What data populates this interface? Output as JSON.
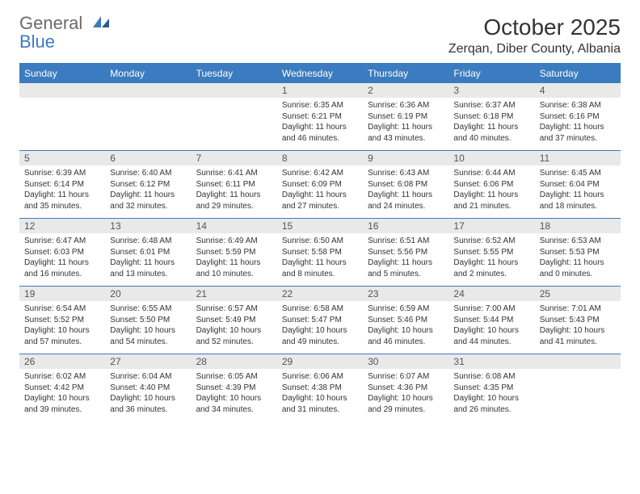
{
  "logo": {
    "text1": "General",
    "text2": "Blue"
  },
  "title": "October 2025",
  "location": "Zerqan, Diber County, Albania",
  "colors": {
    "accent": "#3b7bbf",
    "header_bg": "#3b7bbf",
    "header_text": "#ffffff",
    "daynum_bg": "#e9e9e9",
    "body_text": "#333333",
    "logo_gray": "#6a6a6a"
  },
  "day_headers": [
    "Sunday",
    "Monday",
    "Tuesday",
    "Wednesday",
    "Thursday",
    "Friday",
    "Saturday"
  ],
  "weeks": [
    {
      "nums": [
        "",
        "",
        "",
        "1",
        "2",
        "3",
        "4"
      ],
      "cells": [
        null,
        null,
        null,
        {
          "sunrise": "Sunrise: 6:35 AM",
          "sunset": "Sunset: 6:21 PM",
          "day1": "Daylight: 11 hours",
          "day2": "and 46 minutes."
        },
        {
          "sunrise": "Sunrise: 6:36 AM",
          "sunset": "Sunset: 6:19 PM",
          "day1": "Daylight: 11 hours",
          "day2": "and 43 minutes."
        },
        {
          "sunrise": "Sunrise: 6:37 AM",
          "sunset": "Sunset: 6:18 PM",
          "day1": "Daylight: 11 hours",
          "day2": "and 40 minutes."
        },
        {
          "sunrise": "Sunrise: 6:38 AM",
          "sunset": "Sunset: 6:16 PM",
          "day1": "Daylight: 11 hours",
          "day2": "and 37 minutes."
        }
      ]
    },
    {
      "nums": [
        "5",
        "6",
        "7",
        "8",
        "9",
        "10",
        "11"
      ],
      "cells": [
        {
          "sunrise": "Sunrise: 6:39 AM",
          "sunset": "Sunset: 6:14 PM",
          "day1": "Daylight: 11 hours",
          "day2": "and 35 minutes."
        },
        {
          "sunrise": "Sunrise: 6:40 AM",
          "sunset": "Sunset: 6:12 PM",
          "day1": "Daylight: 11 hours",
          "day2": "and 32 minutes."
        },
        {
          "sunrise": "Sunrise: 6:41 AM",
          "sunset": "Sunset: 6:11 PM",
          "day1": "Daylight: 11 hours",
          "day2": "and 29 minutes."
        },
        {
          "sunrise": "Sunrise: 6:42 AM",
          "sunset": "Sunset: 6:09 PM",
          "day1": "Daylight: 11 hours",
          "day2": "and 27 minutes."
        },
        {
          "sunrise": "Sunrise: 6:43 AM",
          "sunset": "Sunset: 6:08 PM",
          "day1": "Daylight: 11 hours",
          "day2": "and 24 minutes."
        },
        {
          "sunrise": "Sunrise: 6:44 AM",
          "sunset": "Sunset: 6:06 PM",
          "day1": "Daylight: 11 hours",
          "day2": "and 21 minutes."
        },
        {
          "sunrise": "Sunrise: 6:45 AM",
          "sunset": "Sunset: 6:04 PM",
          "day1": "Daylight: 11 hours",
          "day2": "and 18 minutes."
        }
      ]
    },
    {
      "nums": [
        "12",
        "13",
        "14",
        "15",
        "16",
        "17",
        "18"
      ],
      "cells": [
        {
          "sunrise": "Sunrise: 6:47 AM",
          "sunset": "Sunset: 6:03 PM",
          "day1": "Daylight: 11 hours",
          "day2": "and 16 minutes."
        },
        {
          "sunrise": "Sunrise: 6:48 AM",
          "sunset": "Sunset: 6:01 PM",
          "day1": "Daylight: 11 hours",
          "day2": "and 13 minutes."
        },
        {
          "sunrise": "Sunrise: 6:49 AM",
          "sunset": "Sunset: 5:59 PM",
          "day1": "Daylight: 11 hours",
          "day2": "and 10 minutes."
        },
        {
          "sunrise": "Sunrise: 6:50 AM",
          "sunset": "Sunset: 5:58 PM",
          "day1": "Daylight: 11 hours",
          "day2": "and 8 minutes."
        },
        {
          "sunrise": "Sunrise: 6:51 AM",
          "sunset": "Sunset: 5:56 PM",
          "day1": "Daylight: 11 hours",
          "day2": "and 5 minutes."
        },
        {
          "sunrise": "Sunrise: 6:52 AM",
          "sunset": "Sunset: 5:55 PM",
          "day1": "Daylight: 11 hours",
          "day2": "and 2 minutes."
        },
        {
          "sunrise": "Sunrise: 6:53 AM",
          "sunset": "Sunset: 5:53 PM",
          "day1": "Daylight: 11 hours",
          "day2": "and 0 minutes."
        }
      ]
    },
    {
      "nums": [
        "19",
        "20",
        "21",
        "22",
        "23",
        "24",
        "25"
      ],
      "cells": [
        {
          "sunrise": "Sunrise: 6:54 AM",
          "sunset": "Sunset: 5:52 PM",
          "day1": "Daylight: 10 hours",
          "day2": "and 57 minutes."
        },
        {
          "sunrise": "Sunrise: 6:55 AM",
          "sunset": "Sunset: 5:50 PM",
          "day1": "Daylight: 10 hours",
          "day2": "and 54 minutes."
        },
        {
          "sunrise": "Sunrise: 6:57 AM",
          "sunset": "Sunset: 5:49 PM",
          "day1": "Daylight: 10 hours",
          "day2": "and 52 minutes."
        },
        {
          "sunrise": "Sunrise: 6:58 AM",
          "sunset": "Sunset: 5:47 PM",
          "day1": "Daylight: 10 hours",
          "day2": "and 49 minutes."
        },
        {
          "sunrise": "Sunrise: 6:59 AM",
          "sunset": "Sunset: 5:46 PM",
          "day1": "Daylight: 10 hours",
          "day2": "and 46 minutes."
        },
        {
          "sunrise": "Sunrise: 7:00 AM",
          "sunset": "Sunset: 5:44 PM",
          "day1": "Daylight: 10 hours",
          "day2": "and 44 minutes."
        },
        {
          "sunrise": "Sunrise: 7:01 AM",
          "sunset": "Sunset: 5:43 PM",
          "day1": "Daylight: 10 hours",
          "day2": "and 41 minutes."
        }
      ]
    },
    {
      "nums": [
        "26",
        "27",
        "28",
        "29",
        "30",
        "31",
        ""
      ],
      "cells": [
        {
          "sunrise": "Sunrise: 6:02 AM",
          "sunset": "Sunset: 4:42 PM",
          "day1": "Daylight: 10 hours",
          "day2": "and 39 minutes."
        },
        {
          "sunrise": "Sunrise: 6:04 AM",
          "sunset": "Sunset: 4:40 PM",
          "day1": "Daylight: 10 hours",
          "day2": "and 36 minutes."
        },
        {
          "sunrise": "Sunrise: 6:05 AM",
          "sunset": "Sunset: 4:39 PM",
          "day1": "Daylight: 10 hours",
          "day2": "and 34 minutes."
        },
        {
          "sunrise": "Sunrise: 6:06 AM",
          "sunset": "Sunset: 4:38 PM",
          "day1": "Daylight: 10 hours",
          "day2": "and 31 minutes."
        },
        {
          "sunrise": "Sunrise: 6:07 AM",
          "sunset": "Sunset: 4:36 PM",
          "day1": "Daylight: 10 hours",
          "day2": "and 29 minutes."
        },
        {
          "sunrise": "Sunrise: 6:08 AM",
          "sunset": "Sunset: 4:35 PM",
          "day1": "Daylight: 10 hours",
          "day2": "and 26 minutes."
        },
        null
      ]
    }
  ]
}
